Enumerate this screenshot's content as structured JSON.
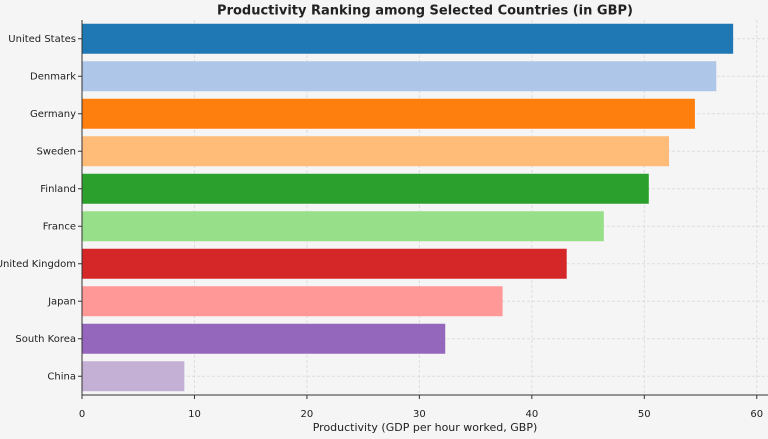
{
  "chart_data": {
    "type": "barh",
    "title": "Productivity Ranking among Selected Countries (in GBP)",
    "x_label": "Productivity (GDP per hour worked, GBP)",
    "categories": [
      "United States",
      "Denmark",
      "Germany",
      "Sweden",
      "Finland",
      "France",
      "United Kingdom",
      "Japan",
      "South Korea",
      "China"
    ],
    "values": [
      57.9,
      56.4,
      54.5,
      52.2,
      50.4,
      46.4,
      43.1,
      37.4,
      32.3,
      9.1
    ],
    "colors": [
      "#1f77b4",
      "#aec7e8",
      "#ff7f0e",
      "#ffbb78",
      "#2ca02c",
      "#98df8a",
      "#d62728",
      "#ff9896",
      "#9467bd",
      "#c5b0d5"
    ],
    "xlim": [
      0,
      61
    ],
    "xticks": [
      0,
      10,
      20,
      30,
      40,
      50,
      60
    ],
    "grid": true
  }
}
